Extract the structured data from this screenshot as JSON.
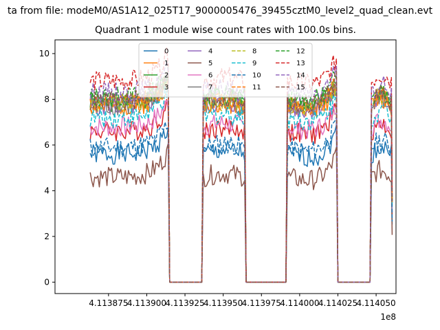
{
  "chart_data": {
    "type": "line",
    "suptitle": "ta from file: modeM0/AS1A12_025T17_9000005476_39455cztM0_level2_quad_clean.evt",
    "title": "Quadrant 1 module wise count rates with 100.0s bins.",
    "xlabel": "",
    "ylabel": "",
    "x_offset_label": "1e8",
    "xlim": [
      4.11384,
      4.114063
    ],
    "ylim": [
      -0.5,
      10.6
    ],
    "xticks": [
      4.113875,
      4.1139,
      4.113925,
      4.11395,
      4.113975,
      4.114,
      4.114025,
      4.11405
    ],
    "xtick_labels": [
      "4.113875",
      "4.113900",
      "4.113925",
      "4.113950",
      "4.113975",
      "4.114000",
      "4.114025",
      "4.114050"
    ],
    "yticks": [
      0,
      2,
      4,
      6,
      8,
      10
    ],
    "ytick_labels": [
      "0",
      "2",
      "4",
      "6",
      "8",
      "10"
    ],
    "grid": false,
    "legend_position": "top-center",
    "legend_columns": 4,
    "segments": [
      [
        4.113863,
        4.113914
      ],
      [
        4.113937,
        4.113964
      ],
      [
        4.113992,
        4.114024
      ],
      [
        4.114047,
        4.11406
      ]
    ],
    "gaps": [
      [
        4.113915,
        4.113936
      ],
      [
        4.113965,
        4.113991
      ],
      [
        4.114025,
        4.114046
      ]
    ],
    "series": [
      {
        "name": "0",
        "level": 5.6,
        "color": "#1f77b4",
        "dash": false
      },
      {
        "name": "1",
        "level": 7.7,
        "color": "#ff7f0e",
        "dash": false
      },
      {
        "name": "2",
        "level": 7.9,
        "color": "#2ca02c",
        "dash": false
      },
      {
        "name": "3",
        "level": 6.6,
        "color": "#d62728",
        "dash": false
      },
      {
        "name": "4",
        "level": 7.7,
        "color": "#9467bd",
        "dash": false
      },
      {
        "name": "5",
        "level": 4.6,
        "color": "#8c564b",
        "dash": false
      },
      {
        "name": "6",
        "level": 6.8,
        "color": "#e377c2",
        "dash": false
      },
      {
        "name": "7",
        "level": 7.7,
        "color": "#7f7f7f",
        "dash": false
      },
      {
        "name": "8",
        "level": 7.8,
        "color": "#bcbd22",
        "dash": true
      },
      {
        "name": "9",
        "level": 7.2,
        "color": "#17becf",
        "dash": true
      },
      {
        "name": "10",
        "level": 5.9,
        "color": "#1f77b4",
        "dash": true
      },
      {
        "name": "11",
        "level": 7.8,
        "color": "#ff7f0e",
        "dash": true
      },
      {
        "name": "12",
        "level": 8.1,
        "color": "#2ca02c",
        "dash": true
      },
      {
        "name": "13",
        "level": 8.8,
        "color": "#d62728",
        "dash": true
      },
      {
        "name": "14",
        "level": 8.3,
        "color": "#9467bd",
        "dash": true
      },
      {
        "name": "15",
        "level": 7.9,
        "color": "#8c564b",
        "dash": true
      }
    ]
  }
}
